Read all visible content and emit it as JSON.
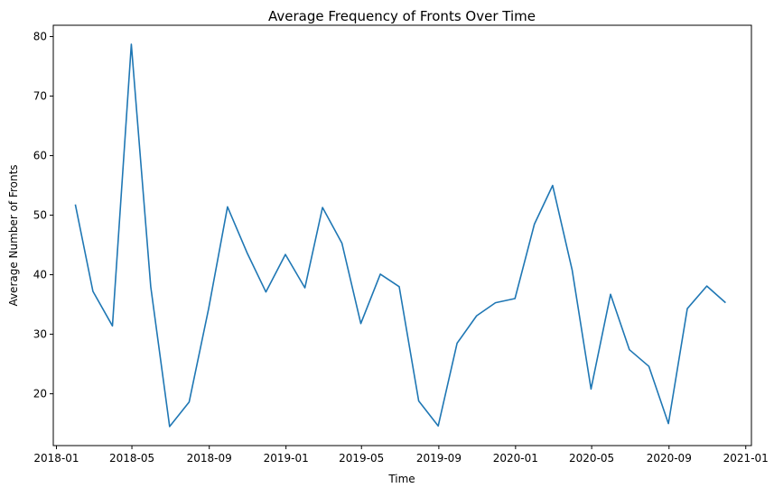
{
  "chart_data": {
    "type": "line",
    "title": "Average Frequency of Fronts Over Time",
    "xlabel": "Time",
    "ylabel": "Average Number of Fronts",
    "xlim": [
      "2017-12-27",
      "2021-01-10"
    ],
    "ylim": [
      11.3,
      81.9
    ],
    "x_ticks": [
      "2018-01",
      "2018-05",
      "2018-09",
      "2019-01",
      "2019-05",
      "2019-09",
      "2020-01",
      "2020-05",
      "2020-09",
      "2021-01"
    ],
    "y_ticks": [
      20,
      30,
      40,
      50,
      60,
      70,
      80
    ],
    "grid": false,
    "legend": "none",
    "series": [
      {
        "color": "#1f77b4",
        "x": [
          "2018-01-31",
          "2018-02-28",
          "2018-03-31",
          "2018-04-30",
          "2018-05-31",
          "2018-06-30",
          "2018-07-31",
          "2018-08-31",
          "2018-09-30",
          "2018-10-31",
          "2018-11-30",
          "2018-12-31",
          "2019-01-31",
          "2019-02-28",
          "2019-03-31",
          "2019-04-30",
          "2019-05-31",
          "2019-06-30",
          "2019-07-31",
          "2019-08-31",
          "2019-09-30",
          "2019-10-31",
          "2019-11-30",
          "2019-12-31",
          "2020-01-31",
          "2020-02-29",
          "2020-03-31",
          "2020-04-30",
          "2020-05-31",
          "2020-06-30",
          "2020-07-31",
          "2020-08-31",
          "2020-09-30",
          "2020-10-31",
          "2020-11-30"
        ],
        "values": [
          51.8,
          37.2,
          31.4,
          78.7,
          38.0,
          14.5,
          18.6,
          34.3,
          51.4,
          43.7,
          37.1,
          43.4,
          37.8,
          51.3,
          45.3,
          31.8,
          40.1,
          38.0,
          18.8,
          14.6,
          28.5,
          33.1,
          35.3,
          36.0,
          48.5,
          55.0,
          40.8,
          20.8,
          36.7,
          27.4,
          24.6,
          15.0,
          34.3,
          38.1,
          35.3
        ]
      }
    ]
  }
}
